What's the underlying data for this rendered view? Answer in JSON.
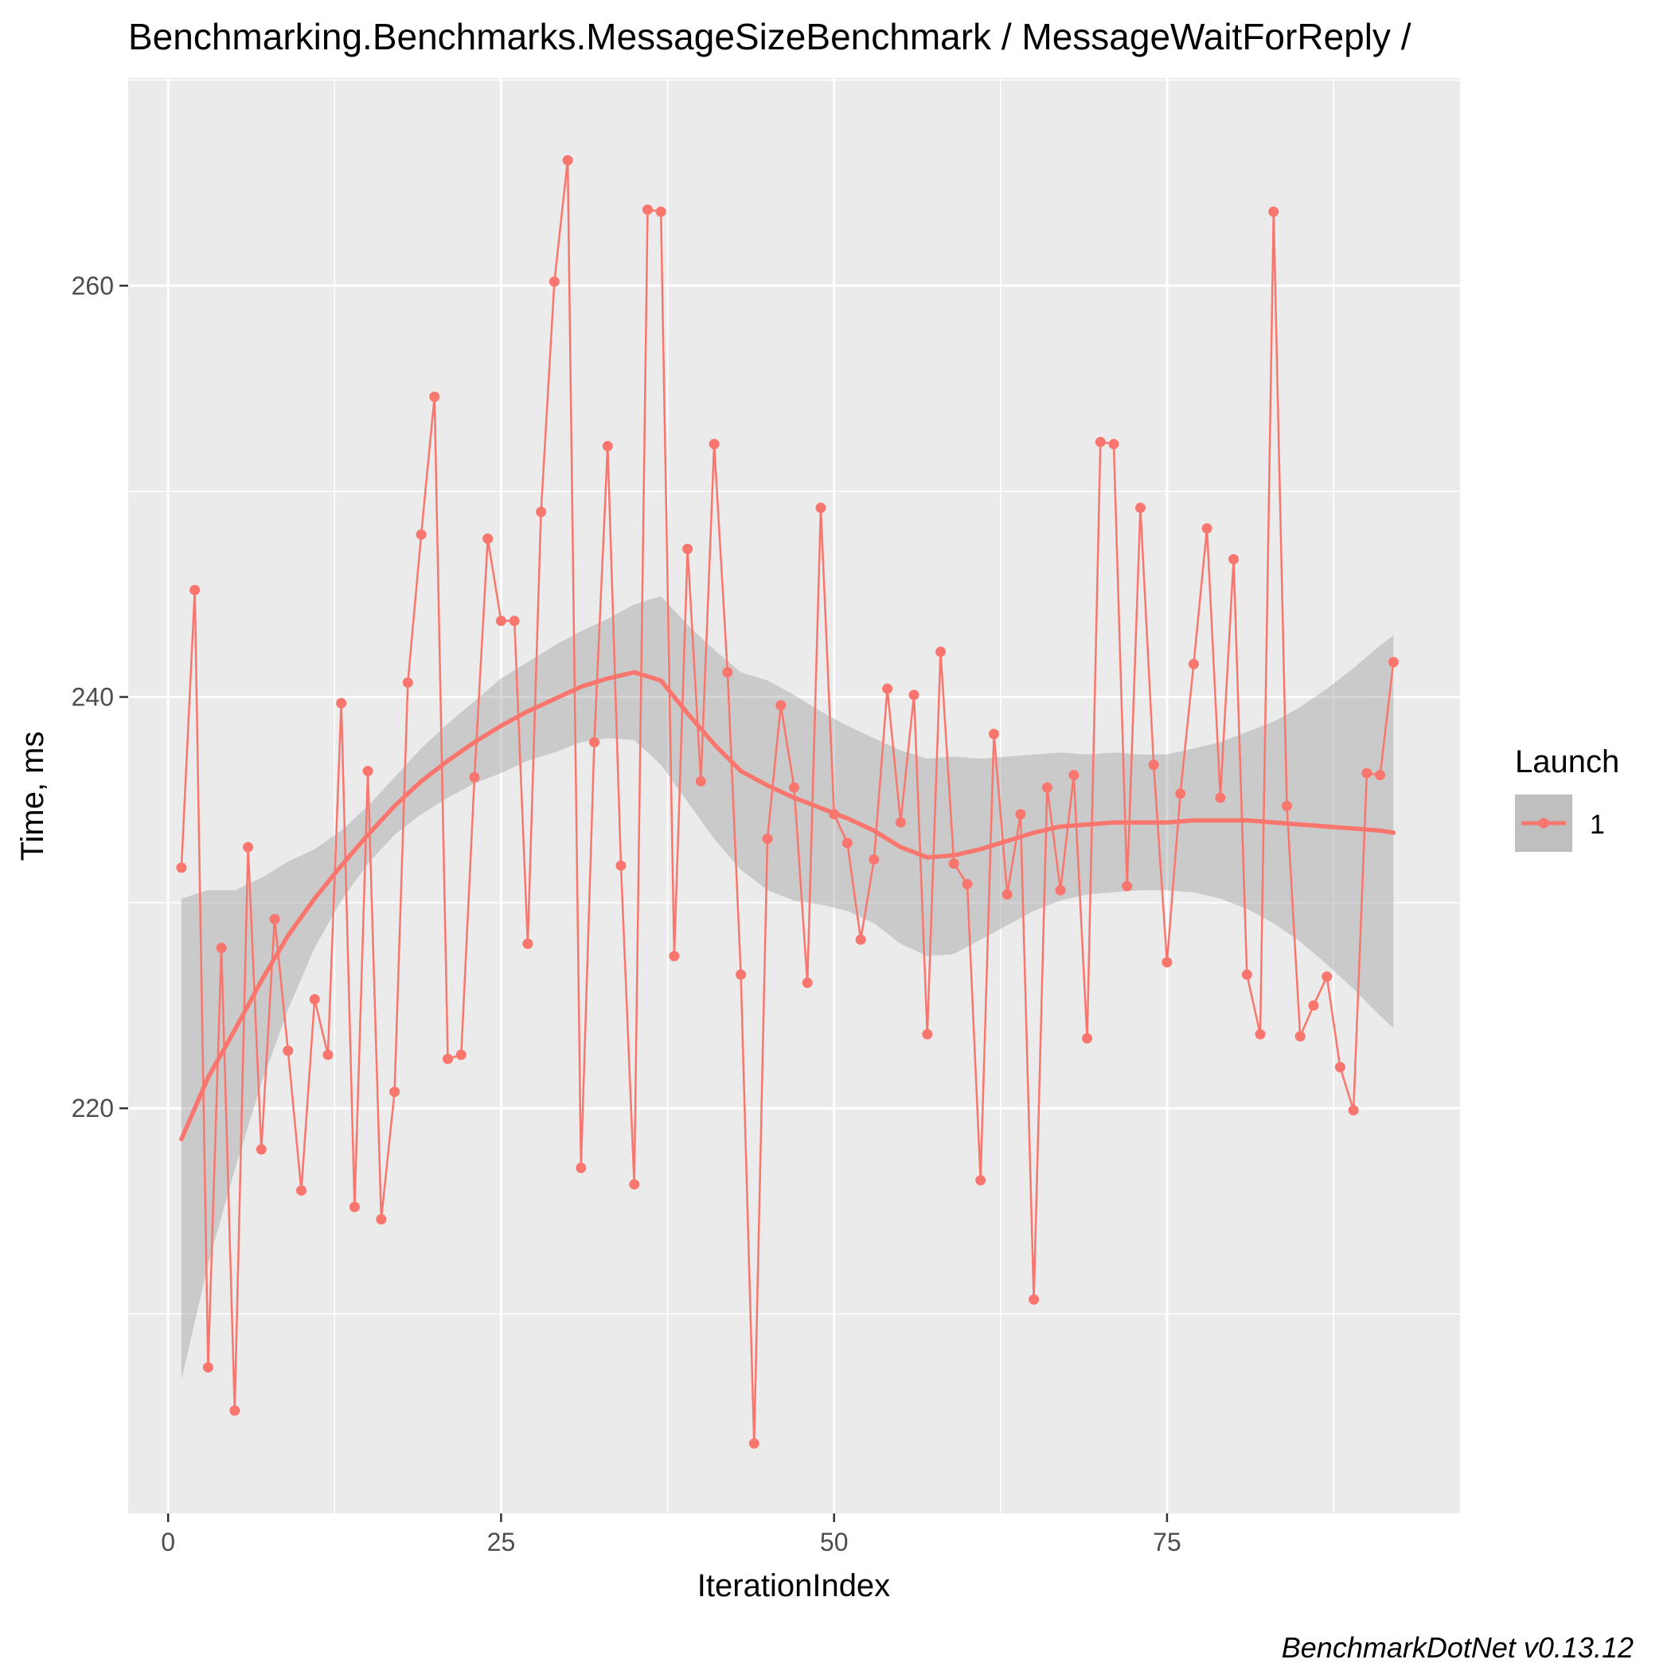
{
  "chart_data": {
    "type": "line",
    "title": "Benchmarking.Benchmarks.MessageSizeBenchmark / MessageWaitForReply /",
    "xlabel": "IterationIndex",
    "ylabel": "Time, ms",
    "caption": "BenchmarkDotNet v0.13.12",
    "xlim": [
      -3,
      97
    ],
    "ylim": [
      200.3,
      270.1
    ],
    "x_ticks": [
      0,
      25,
      50,
      75
    ],
    "y_ticks": [
      220,
      240,
      260
    ],
    "legend": {
      "title": "Launch",
      "position": "right",
      "entries": [
        "1"
      ]
    },
    "colors": {
      "series": "#F8766D",
      "band": "#bfbfbf",
      "panel": "#EBEBEB",
      "grid": "#ffffff"
    },
    "series": [
      {
        "name": "1",
        "x": [
          1,
          2,
          3,
          4,
          5,
          6,
          7,
          8,
          9,
          10,
          11,
          12,
          13,
          14,
          15,
          16,
          17,
          18,
          19,
          20,
          21,
          22,
          23,
          24,
          25,
          26,
          27,
          28,
          29,
          30,
          31,
          32,
          33,
          34,
          35,
          36,
          37,
          38,
          39,
          40,
          41,
          42,
          43,
          44,
          45,
          46,
          47,
          48,
          49,
          50,
          51,
          52,
          53,
          54,
          55,
          56,
          57,
          58,
          59,
          60,
          61,
          62,
          63,
          64,
          65,
          66,
          67,
          68,
          69,
          70,
          71,
          72,
          73,
          74,
          75,
          76,
          77,
          78,
          79,
          80,
          81,
          82,
          83,
          84,
          85,
          86,
          87,
          88,
          89,
          90,
          91,
          92
        ],
        "y": [
          231.7,
          245.2,
          207.4,
          227.8,
          205.3,
          232.7,
          218.0,
          229.2,
          222.8,
          216.0,
          225.3,
          222.6,
          239.7,
          215.2,
          236.4,
          214.6,
          220.8,
          240.7,
          247.9,
          254.6,
          222.4,
          222.6,
          236.1,
          247.7,
          243.7,
          243.7,
          228.0,
          249.0,
          260.2,
          266.1,
          217.1,
          237.8,
          252.2,
          231.8,
          216.3,
          263.7,
          263.6,
          227.4,
          247.2,
          235.9,
          252.3,
          241.2,
          226.5,
          203.7,
          233.1,
          239.6,
          235.6,
          226.1,
          249.2,
          234.3,
          232.9,
          228.2,
          232.1,
          240.4,
          233.9,
          240.1,
          223.6,
          242.2,
          231.9,
          230.9,
          216.5,
          238.2,
          230.4,
          234.3,
          210.7,
          235.6,
          230.6,
          236.2,
          223.4,
          252.4,
          252.3,
          230.8,
          249.2,
          236.7,
          227.1,
          235.3,
          241.6,
          248.2,
          235.1,
          246.7,
          226.5,
          223.6,
          263.6,
          234.7,
          223.5,
          225.0,
          226.4,
          222.0,
          219.9,
          236.3,
          236.2,
          241.7
        ]
      }
    ],
    "smooth": {
      "x": [
        1,
        3,
        5,
        7,
        9,
        11,
        13,
        15,
        17,
        19,
        21,
        23,
        25,
        27,
        29,
        31,
        33,
        35,
        37,
        39,
        41,
        43,
        45,
        47,
        49,
        51,
        53,
        55,
        57,
        59,
        61,
        63,
        65,
        67,
        69,
        71,
        73,
        75,
        77,
        79,
        81,
        83,
        85,
        87,
        89,
        91,
        92
      ],
      "y": [
        218.5,
        221.5,
        223.8,
        226.2,
        228.4,
        230.2,
        231.8,
        233.3,
        234.7,
        235.9,
        236.9,
        237.8,
        238.6,
        239.3,
        239.9,
        240.5,
        240.9,
        241.2,
        240.8,
        239.2,
        237.7,
        236.4,
        235.7,
        235.1,
        234.6,
        234.1,
        233.5,
        232.7,
        232.2,
        232.3,
        232.6,
        233.0,
        233.4,
        233.7,
        233.8,
        233.9,
        233.9,
        233.9,
        234.0,
        234.0,
        234.0,
        233.9,
        233.8,
        233.7,
        233.6,
        233.5,
        233.4
      ],
      "lower": [
        206.8,
        212.4,
        217.0,
        221.2,
        224.8,
        227.8,
        230.1,
        231.9,
        233.3,
        234.3,
        235.1,
        235.8,
        236.3,
        236.9,
        237.3,
        237.8,
        238.0,
        237.9,
        236.7,
        234.9,
        233.1,
        231.6,
        230.6,
        230.1,
        229.9,
        229.6,
        229.0,
        228.0,
        227.4,
        227.5,
        228.2,
        228.9,
        229.6,
        230.1,
        230.4,
        230.5,
        230.6,
        230.6,
        230.5,
        230.2,
        229.7,
        229.0,
        228.1,
        227.0,
        225.8,
        224.5,
        223.9
      ],
      "upper": [
        230.2,
        230.6,
        230.6,
        231.2,
        232.0,
        232.6,
        233.5,
        234.7,
        236.1,
        237.5,
        238.7,
        239.8,
        240.9,
        241.7,
        242.5,
        243.2,
        243.8,
        244.5,
        244.9,
        243.5,
        242.3,
        241.2,
        240.8,
        240.1,
        239.3,
        238.6,
        238.0,
        237.4,
        237.0,
        237.1,
        237.0,
        237.1,
        237.2,
        237.3,
        237.2,
        237.3,
        237.2,
        237.2,
        237.5,
        237.8,
        238.3,
        238.8,
        239.5,
        240.4,
        241.4,
        242.5,
        243.0
      ]
    }
  }
}
